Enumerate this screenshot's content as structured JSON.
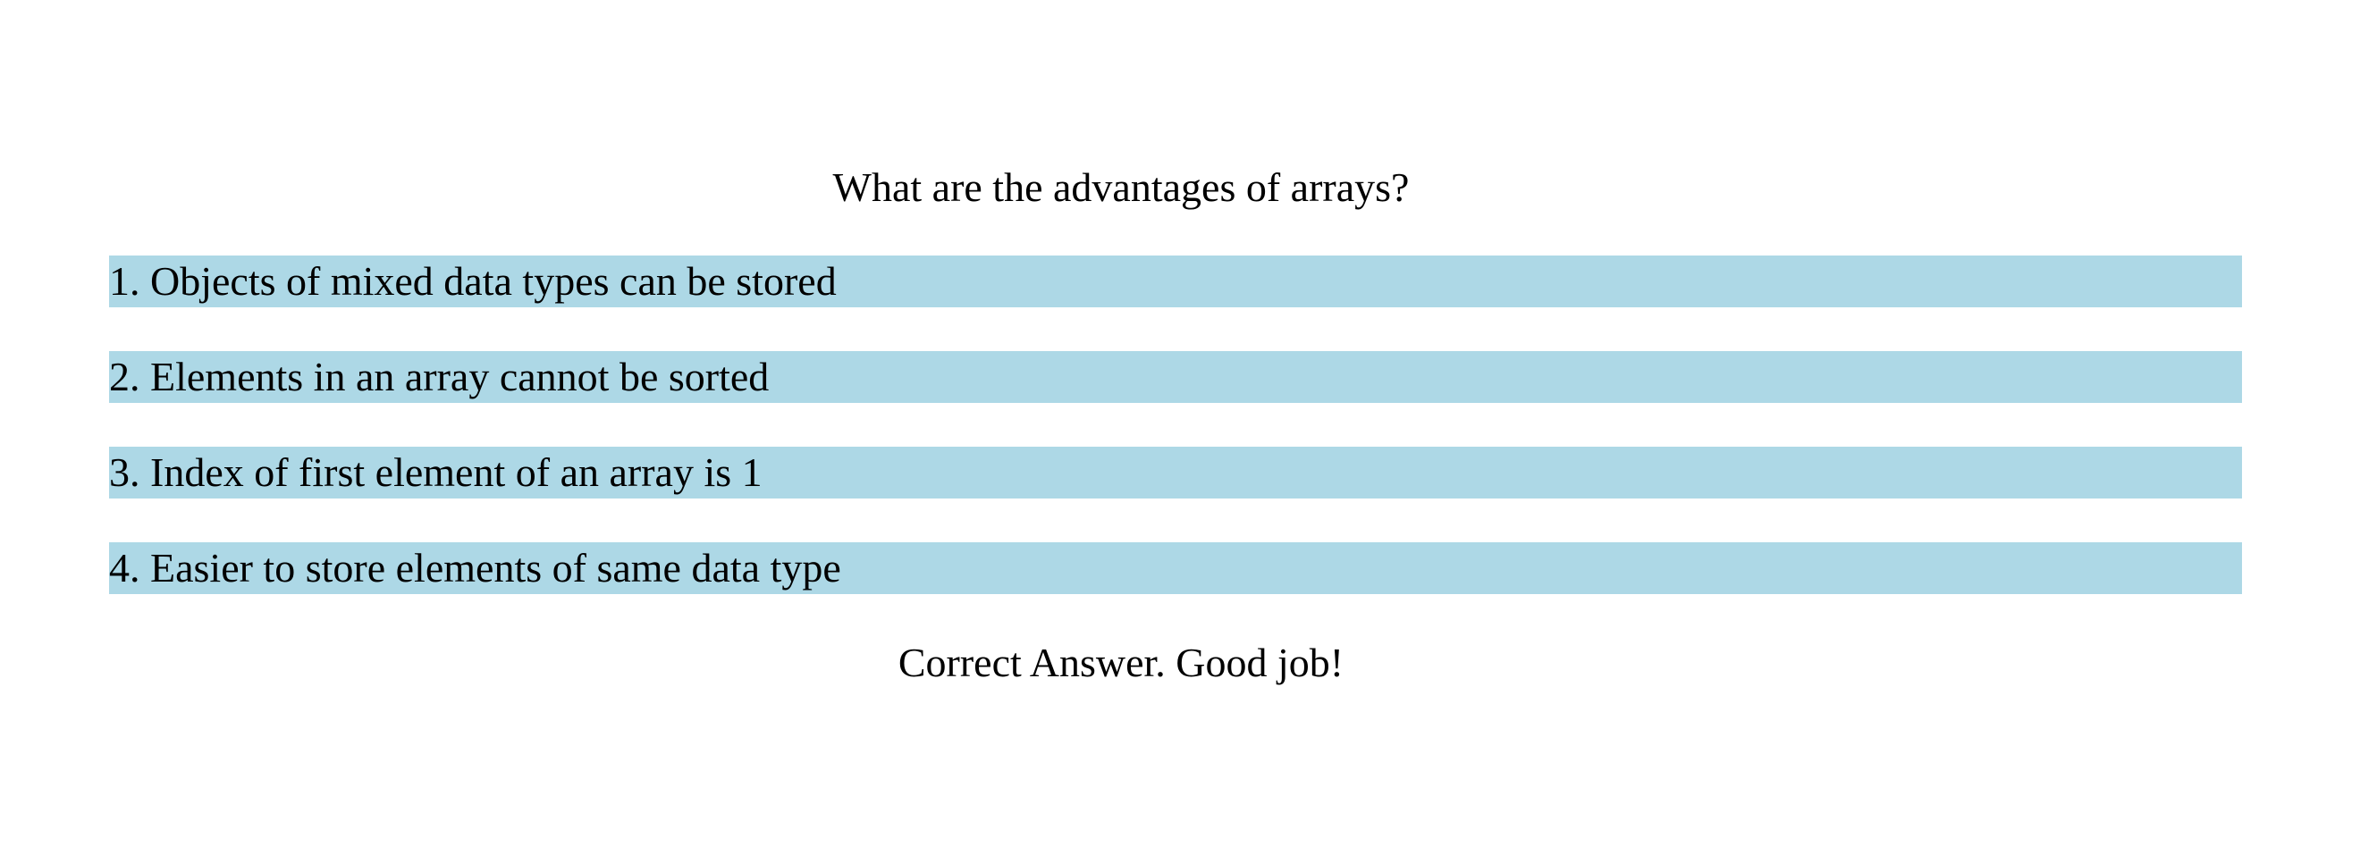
{
  "quiz": {
    "question": "What are the advantages of arrays?",
    "options": [
      {
        "number": "1.",
        "text": "Objects of mixed data types can be stored"
      },
      {
        "number": "2.",
        "text": "Elements in an array cannot be sorted"
      },
      {
        "number": "3.",
        "text": "Index of first element of an array is 1"
      },
      {
        "number": "4.",
        "text": "Easier to store elements of same data type"
      }
    ],
    "feedback": "Correct Answer. Good job!"
  },
  "colors": {
    "option_background": "#add8e6",
    "text": "#000000",
    "page_background": "#ffffff"
  }
}
